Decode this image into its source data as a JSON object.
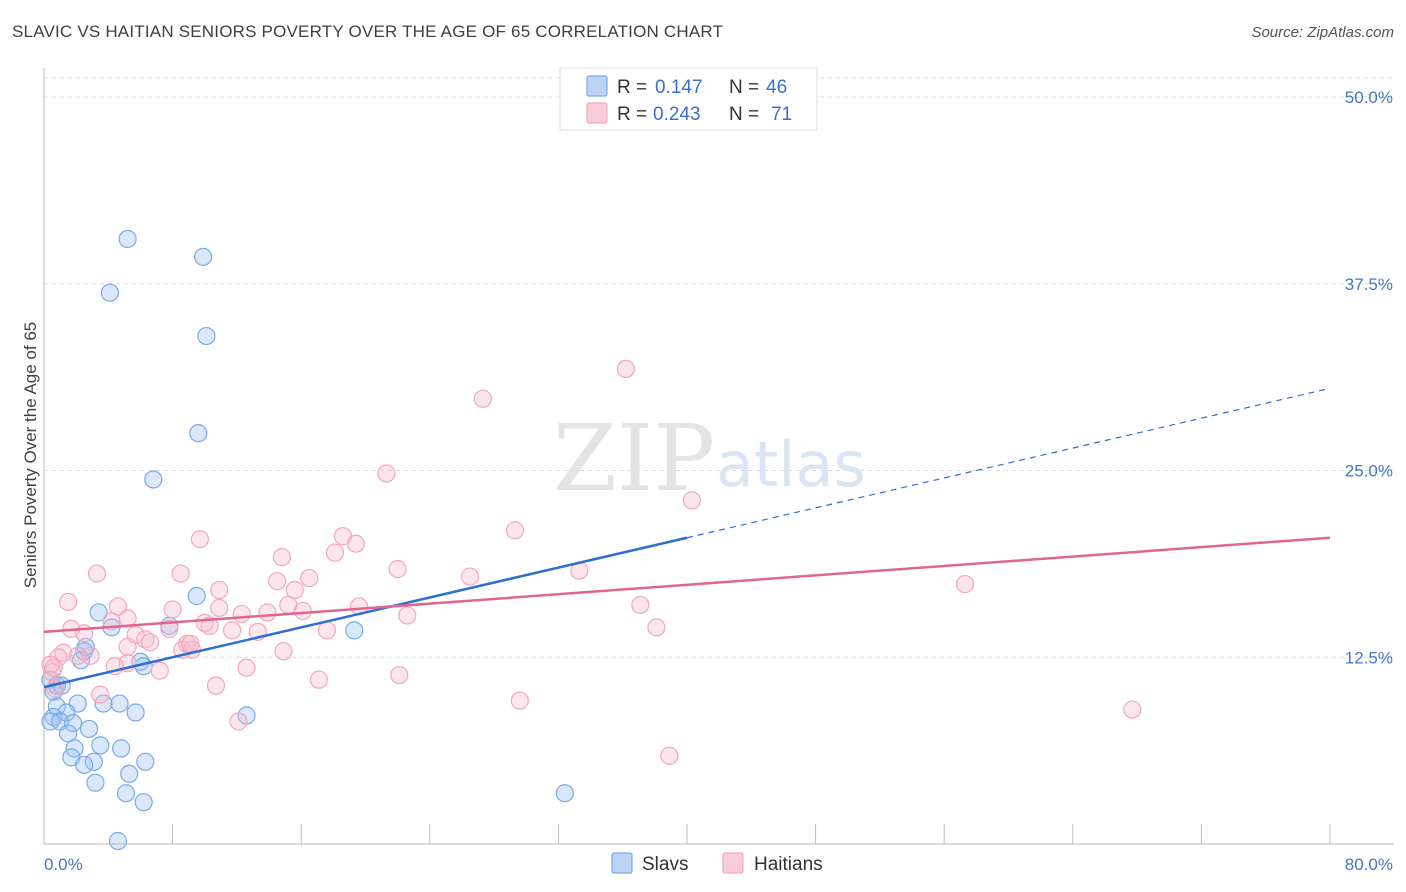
{
  "title": "SLAVIC VS HAITIAN SENIORS POVERTY OVER THE AGE OF 65 CORRELATION CHART",
  "source": "Source: ZipAtlas.com",
  "watermark": {
    "zip": "ZIP",
    "atlas": "atlas"
  },
  "legend": {
    "r_label": "R =",
    "n_label": "N =",
    "entries": [
      {
        "r": "0.147",
        "n": "46"
      },
      {
        "r": "0.243",
        "n": "71"
      }
    ]
  },
  "chart_data": {
    "type": "scatter",
    "title": "SLAVIC VS HAITIAN SENIORS POVERTY OVER THE AGE OF 65 CORRELATION CHART",
    "xlabel": "",
    "ylabel": "Seniors Poverty Over the Age of 65",
    "xlim": [
      0,
      80
    ],
    "ylim": [
      0,
      50
    ],
    "x_tick_labels": [
      "0.0%",
      "80.0%"
    ],
    "y_tick_labels": [
      "12.5%",
      "25.0%",
      "37.5%",
      "50.0%"
    ],
    "y_ticks": [
      12.5,
      25.0,
      37.5,
      50.0
    ],
    "grid": true,
    "legend_position": "top-center",
    "series": [
      {
        "name": "Slavs",
        "color": "#7aaae8",
        "line_color": "#2f6fd0",
        "r": 0.147,
        "n": 46,
        "trend": {
          "x0": 0,
          "y0": 10.5,
          "x1": 40,
          "y1": 20.5,
          "dashed_to_x": 80,
          "dashed_to_y": 30.5
        },
        "points": [
          [
            5.2,
            40.5
          ],
          [
            9.9,
            39.3
          ],
          [
            4.1,
            36.9
          ],
          [
            10.1,
            34.0
          ],
          [
            9.6,
            27.5
          ],
          [
            6.8,
            24.4
          ],
          [
            9.5,
            16.6
          ],
          [
            3.4,
            15.5
          ],
          [
            4.2,
            14.5
          ],
          [
            7.8,
            14.6
          ],
          [
            19.3,
            14.3
          ],
          [
            2.5,
            12.9
          ],
          [
            2.3,
            12.3
          ],
          [
            6.0,
            12.2
          ],
          [
            6.2,
            11.9
          ],
          [
            0.4,
            11.0
          ],
          [
            0.8,
            10.6
          ],
          [
            1.1,
            10.6
          ],
          [
            0.6,
            10.2
          ],
          [
            2.1,
            9.4
          ],
          [
            3.7,
            9.4
          ],
          [
            4.7,
            9.4
          ],
          [
            0.8,
            9.2
          ],
          [
            1.4,
            8.8
          ],
          [
            5.7,
            8.8
          ],
          [
            12.6,
            8.6
          ],
          [
            0.6,
            8.5
          ],
          [
            0.4,
            8.2
          ],
          [
            1.0,
            8.2
          ],
          [
            1.8,
            8.1
          ],
          [
            2.8,
            7.7
          ],
          [
            1.5,
            7.4
          ],
          [
            1.9,
            6.4
          ],
          [
            3.5,
            6.6
          ],
          [
            4.8,
            6.4
          ],
          [
            1.7,
            5.8
          ],
          [
            3.1,
            5.5
          ],
          [
            2.5,
            5.3
          ],
          [
            6.3,
            5.5
          ],
          [
            5.3,
            4.7
          ],
          [
            3.2,
            4.1
          ],
          [
            5.1,
            3.4
          ],
          [
            6.2,
            2.8
          ],
          [
            32.4,
            3.4
          ],
          [
            4.6,
            0.2
          ],
          [
            2.6,
            13.2
          ]
        ]
      },
      {
        "name": "Haitians",
        "color": "#f4a6bd",
        "line_color": "#e06592",
        "r": 0.243,
        "n": 71,
        "trend": {
          "x0": 0,
          "y0": 14.2,
          "x1": 80,
          "y1": 20.5
        },
        "points": [
          [
            36.2,
            31.8
          ],
          [
            27.3,
            29.8
          ],
          [
            21.3,
            24.8
          ],
          [
            40.3,
            23.0
          ],
          [
            29.3,
            21.0
          ],
          [
            9.7,
            20.4
          ],
          [
            18.6,
            20.6
          ],
          [
            19.4,
            20.1
          ],
          [
            18.1,
            19.5
          ],
          [
            14.8,
            19.2
          ],
          [
            22.0,
            18.4
          ],
          [
            33.3,
            18.3
          ],
          [
            3.3,
            18.1
          ],
          [
            8.5,
            18.1
          ],
          [
            16.5,
            17.8
          ],
          [
            26.5,
            17.9
          ],
          [
            57.3,
            17.4
          ],
          [
            14.5,
            17.6
          ],
          [
            15.6,
            17.0
          ],
          [
            10.9,
            17.0
          ],
          [
            1.5,
            16.2
          ],
          [
            4.6,
            15.9
          ],
          [
            8.0,
            15.7
          ],
          [
            10.9,
            15.8
          ],
          [
            12.3,
            15.4
          ],
          [
            13.9,
            15.5
          ],
          [
            19.6,
            15.9
          ],
          [
            15.2,
            16.0
          ],
          [
            16.1,
            15.6
          ],
          [
            22.6,
            15.3
          ],
          [
            37.1,
            16.0
          ],
          [
            5.2,
            15.1
          ],
          [
            4.2,
            14.9
          ],
          [
            10.0,
            14.8
          ],
          [
            10.3,
            14.6
          ],
          [
            7.8,
            14.4
          ],
          [
            1.7,
            14.4
          ],
          [
            2.5,
            14.1
          ],
          [
            11.7,
            14.3
          ],
          [
            13.3,
            14.2
          ],
          [
            17.6,
            14.3
          ],
          [
            38.1,
            14.5
          ],
          [
            5.7,
            14.0
          ],
          [
            6.3,
            13.7
          ],
          [
            6.6,
            13.5
          ],
          [
            8.9,
            13.4
          ],
          [
            8.6,
            13.0
          ],
          [
            9.2,
            13.0
          ],
          [
            5.2,
            13.2
          ],
          [
            1.2,
            12.8
          ],
          [
            2.9,
            12.6
          ],
          [
            0.9,
            12.5
          ],
          [
            5.2,
            12.1
          ],
          [
            7.2,
            11.6
          ],
          [
            12.6,
            11.8
          ],
          [
            22.1,
            11.3
          ],
          [
            17.1,
            11.0
          ],
          [
            0.5,
            11.5
          ],
          [
            0.4,
            12.0
          ],
          [
            0.6,
            11.8
          ],
          [
            10.7,
            10.6
          ],
          [
            3.5,
            10.0
          ],
          [
            29.6,
            9.6
          ],
          [
            67.7,
            9.0
          ],
          [
            12.1,
            8.2
          ],
          [
            38.9,
            5.9
          ],
          [
            9.1,
            13.4
          ],
          [
            14.9,
            12.9
          ],
          [
            4.4,
            11.9
          ],
          [
            2.1,
            12.6
          ],
          [
            0.7,
            10.4
          ]
        ]
      }
    ]
  }
}
